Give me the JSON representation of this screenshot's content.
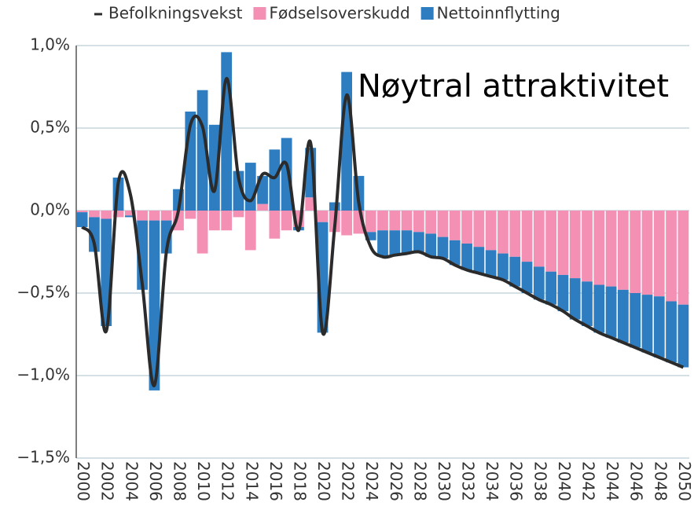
{
  "chart_data": {
    "type": "bar",
    "annotation": "Nøytral attraktivitet",
    "categories": [
      "2000",
      null,
      "2002",
      null,
      "2004",
      null,
      "2006",
      null,
      "2008",
      null,
      "2010",
      null,
      "2012",
      null,
      "2014",
      null,
      "2016",
      null,
      "2018",
      null,
      "2020",
      null,
      "2022",
      null,
      "2024",
      null,
      "2026",
      null,
      "2028",
      null,
      "2030",
      null,
      "2032",
      null,
      "2034",
      null,
      "2036",
      null,
      "2038",
      null,
      "2040",
      null,
      "2042",
      null,
      "2044",
      null,
      "2046",
      null,
      "2048",
      null,
      "2050"
    ],
    "series": [
      {
        "name": "Befolkningsvekst",
        "type": "line",
        "color": "#2b2b2b",
        "values": [
          -0.1,
          -0.2,
          -0.73,
          0.17,
          0.1,
          -0.45,
          -1.06,
          -0.25,
          0.0,
          0.52,
          0.51,
          0.12,
          0.8,
          0.2,
          0.06,
          0.22,
          0.2,
          0.28,
          -0.12,
          0.41,
          -0.74,
          -0.1,
          0.7,
          0.05,
          -0.22,
          -0.28,
          -0.27,
          -0.26,
          -0.25,
          -0.28,
          -0.29,
          -0.33,
          -0.36,
          -0.38,
          -0.4,
          -0.42,
          -0.46,
          -0.5,
          -0.54,
          -0.57,
          -0.61,
          -0.66,
          -0.7,
          -0.74,
          -0.77,
          -0.8,
          -0.83,
          -0.86,
          -0.89,
          -0.92,
          -0.95
        ]
      },
      {
        "name": "Fødselsoverskudd",
        "type": "bar",
        "color": "#f590b5",
        "values": [
          -0.01,
          -0.04,
          -0.05,
          -0.04,
          -0.03,
          -0.06,
          -0.06,
          -0.06,
          -0.12,
          -0.05,
          -0.26,
          -0.12,
          -0.12,
          -0.04,
          -0.24,
          0.04,
          -0.17,
          -0.12,
          -0.1,
          0.08,
          -0.07,
          -0.13,
          -0.15,
          -0.14,
          -0.13,
          -0.12,
          -0.12,
          -0.12,
          -0.13,
          -0.14,
          -0.16,
          -0.18,
          -0.2,
          -0.22,
          -0.24,
          -0.26,
          -0.28,
          -0.31,
          -0.34,
          -0.37,
          -0.39,
          -0.41,
          -0.43,
          -0.45,
          -0.46,
          -0.48,
          -0.5,
          -0.51,
          -0.52,
          -0.55,
          -0.57
        ]
      },
      {
        "name": "Nettoinnflytting",
        "type": "bar",
        "color": "#2e7dc0",
        "values": [
          -0.09,
          -0.21,
          -0.65,
          0.2,
          -0.01,
          -0.42,
          -1.03,
          -0.2,
          0.13,
          0.6,
          0.73,
          0.52,
          0.96,
          0.24,
          0.29,
          0.17,
          0.37,
          0.44,
          -0.02,
          0.3,
          -0.67,
          0.05,
          0.84,
          0.21,
          -0.05,
          -0.16,
          -0.15,
          -0.14,
          -0.12,
          -0.14,
          -0.13,
          -0.15,
          -0.16,
          -0.16,
          -0.16,
          -0.16,
          -0.18,
          -0.19,
          -0.2,
          -0.2,
          -0.22,
          -0.25,
          -0.27,
          -0.29,
          -0.31,
          -0.32,
          -0.33,
          -0.35,
          -0.37,
          -0.37,
          -0.38
        ]
      }
    ],
    "ylim": [
      -1.5,
      1.0
    ],
    "yticks": [
      {
        "value": -1.5,
        "label": "−1,5%"
      },
      {
        "value": -1.0,
        "label": "−1,0%"
      },
      {
        "value": -0.5,
        "label": "−0,5%"
      },
      {
        "value": 0,
        "label": "0,0%"
      },
      {
        "value": 0.5,
        "label": "0,5%"
      },
      {
        "value": 1.0,
        "label": "1,0%"
      }
    ],
    "grid": true,
    "legend": "top"
  }
}
